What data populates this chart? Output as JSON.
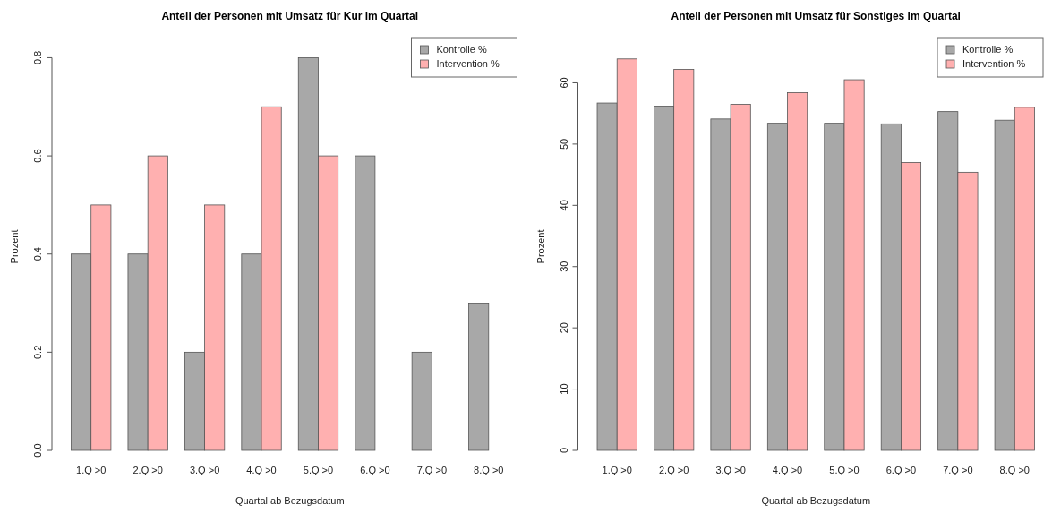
{
  "chart_data": [
    {
      "type": "bar",
      "title": "Anteil der Personen mit Umsatz für Kur im Quartal",
      "xlabel": "Quartal ab Bezugsdatum",
      "ylabel": "Prozent",
      "categories": [
        "1.Q >0",
        "2.Q >0",
        "3.Q >0",
        "4.Q >0",
        "5.Q >0",
        "6.Q >0",
        "7.Q >0",
        "8.Q >0"
      ],
      "series": [
        {
          "name": "Kontrolle %",
          "color": "#a8a8a8",
          "values": [
            0.4,
            0.4,
            0.2,
            0.4,
            0.8,
            0.6,
            0.2,
            0.3
          ]
        },
        {
          "name": "Intervention %",
          "color": "#ffb0b0",
          "values": [
            0.5,
            0.6,
            0.5,
            0.7,
            0.6,
            0,
            0,
            0
          ]
        }
      ],
      "ylim": [
        0,
        0.83
      ],
      "yticks": [
        {
          "value": 0,
          "label": "0.0"
        },
        0.2,
        0.4,
        0.6,
        0.8
      ],
      "legend": "top right",
      "grid": false
    },
    {
      "type": "bar",
      "title": "Anteil der Personen mit Umsatz für Sonstiges im Quartal",
      "xlabel": "Quartal ab Bezugsdatum",
      "ylabel": "Prozent",
      "categories": [
        "1.Q >0",
        "2.Q >0",
        "3.Q >0",
        "4.Q >0",
        "5.Q >0",
        "6.Q >0",
        "7.Q >0",
        "8.Q >0"
      ],
      "series": [
        {
          "name": "Kontrolle %",
          "color": "#a8a8a8",
          "values": [
            56.7,
            56.2,
            54.1,
            53.4,
            53.4,
            53.3,
            55.3,
            53.9
          ]
        },
        {
          "name": "Intervention %",
          "color": "#ffb0b0",
          "values": [
            63.9,
            62.2,
            56.5,
            58.4,
            60.5,
            47.0,
            45.4,
            56.0
          ]
        }
      ],
      "ylim": [
        0,
        66.5
      ],
      "yticks": [
        0,
        10,
        20,
        30,
        40,
        50,
        60
      ],
      "legend": "top right",
      "grid": false
    }
  ]
}
